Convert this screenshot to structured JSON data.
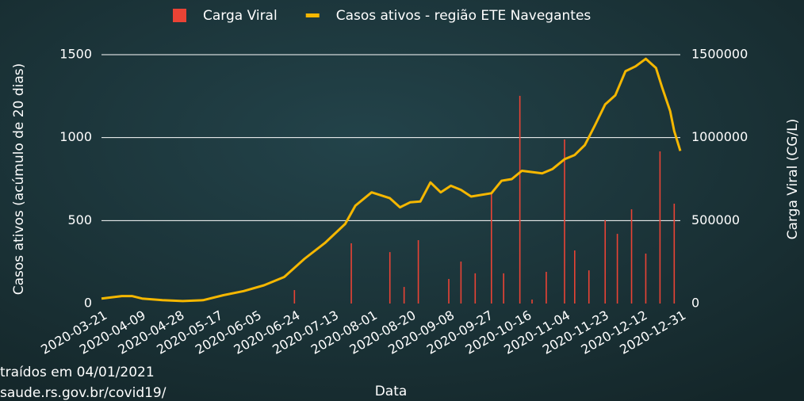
{
  "chart_data": {
    "type": "bar-line",
    "xlabel": "Data",
    "ylabel": "Casos ativos (acúmulo de 20 dias)",
    "y2label": "Carga Viral (CG/L)",
    "xlim": [
      "2020-03-21",
      "2020-12-31"
    ],
    "xticks": [
      "2020-03-21",
      "2020-04-09",
      "2020-04-28",
      "2020-05-17",
      "2020-06-05",
      "2020-06-24",
      "2020-07-13",
      "2020-08-01",
      "2020-08-20",
      "2020-09-08",
      "2020-09-27",
      "2020-10-16",
      "2020-11-04",
      "2020-11-23",
      "2020-12-12",
      "2020-12-31"
    ],
    "ylim": [
      0,
      1500
    ],
    "yticks": [
      0,
      500,
      1000,
      1500
    ],
    "y2lim": [
      0,
      1500000
    ],
    "y2ticks": [
      0,
      500000,
      1000000,
      1500000
    ],
    "grid": true,
    "series": [
      {
        "name": "Carga Viral",
        "color": "#ea4335",
        "type": "bar",
        "axis": "y2",
        "x": [
          "2020-06-24",
          "2020-07-22",
          "2020-08-10",
          "2020-08-17",
          "2020-08-24",
          "2020-09-08",
          "2020-09-14",
          "2020-09-21",
          "2020-09-29",
          "2020-10-05",
          "2020-10-13",
          "2020-10-19",
          "2020-10-26",
          "2020-11-04",
          "2020-11-09",
          "2020-11-16",
          "2020-11-24",
          "2020-11-30",
          "2020-12-07",
          "2020-12-14",
          "2020-12-21",
          "2020-12-28"
        ],
        "values": [
          81000,
          363000,
          310000,
          100000,
          382000,
          148000,
          253000,
          182000,
          660000,
          182000,
          1252000,
          24000,
          191000,
          989000,
          320000,
          200000,
          502000,
          420000,
          568000,
          301000,
          917000,
          602000
        ]
      },
      {
        "name": "Casos ativos - região ETE Navegantes",
        "color": "#f5b700",
        "type": "line",
        "x": [
          "2020-03-21",
          "2020-03-31",
          "2020-04-05",
          "2020-04-10",
          "2020-04-20",
          "2020-04-30",
          "2020-05-10",
          "2020-05-20",
          "2020-05-30",
          "2020-06-09",
          "2020-06-19",
          "2020-06-29",
          "2020-07-09",
          "2020-07-19",
          "2020-07-24",
          "2020-08-01",
          "2020-08-10",
          "2020-08-15",
          "2020-08-20",
          "2020-08-25",
          "2020-08-30",
          "2020-09-04",
          "2020-09-09",
          "2020-09-14",
          "2020-09-19",
          "2020-09-29",
          "2020-10-04",
          "2020-10-09",
          "2020-10-14",
          "2020-10-24",
          "2020-10-29",
          "2020-11-04",
          "2020-11-09",
          "2020-11-14",
          "2020-11-19",
          "2020-11-24",
          "2020-11-29",
          "2020-12-04",
          "2020-12-09",
          "2020-12-14",
          "2020-12-19",
          "2020-12-22",
          "2020-12-26",
          "2020-12-28",
          "2020-12-31"
        ],
        "values": [
          30,
          45,
          45,
          30,
          20,
          15,
          20,
          50,
          75,
          110,
          160,
          270,
          365,
          480,
          590,
          670,
          635,
          580,
          610,
          615,
          730,
          670,
          710,
          685,
          645,
          665,
          740,
          750,
          800,
          785,
          810,
          870,
          895,
          955,
          1075,
          1200,
          1255,
          1400,
          1430,
          1475,
          1420,
          1305,
          1160,
          1040,
          920
        ]
      }
    ],
    "annotations": [
      "traídos em 04/01/2021",
      "saude.rs.gov.br/covid19/"
    ]
  }
}
